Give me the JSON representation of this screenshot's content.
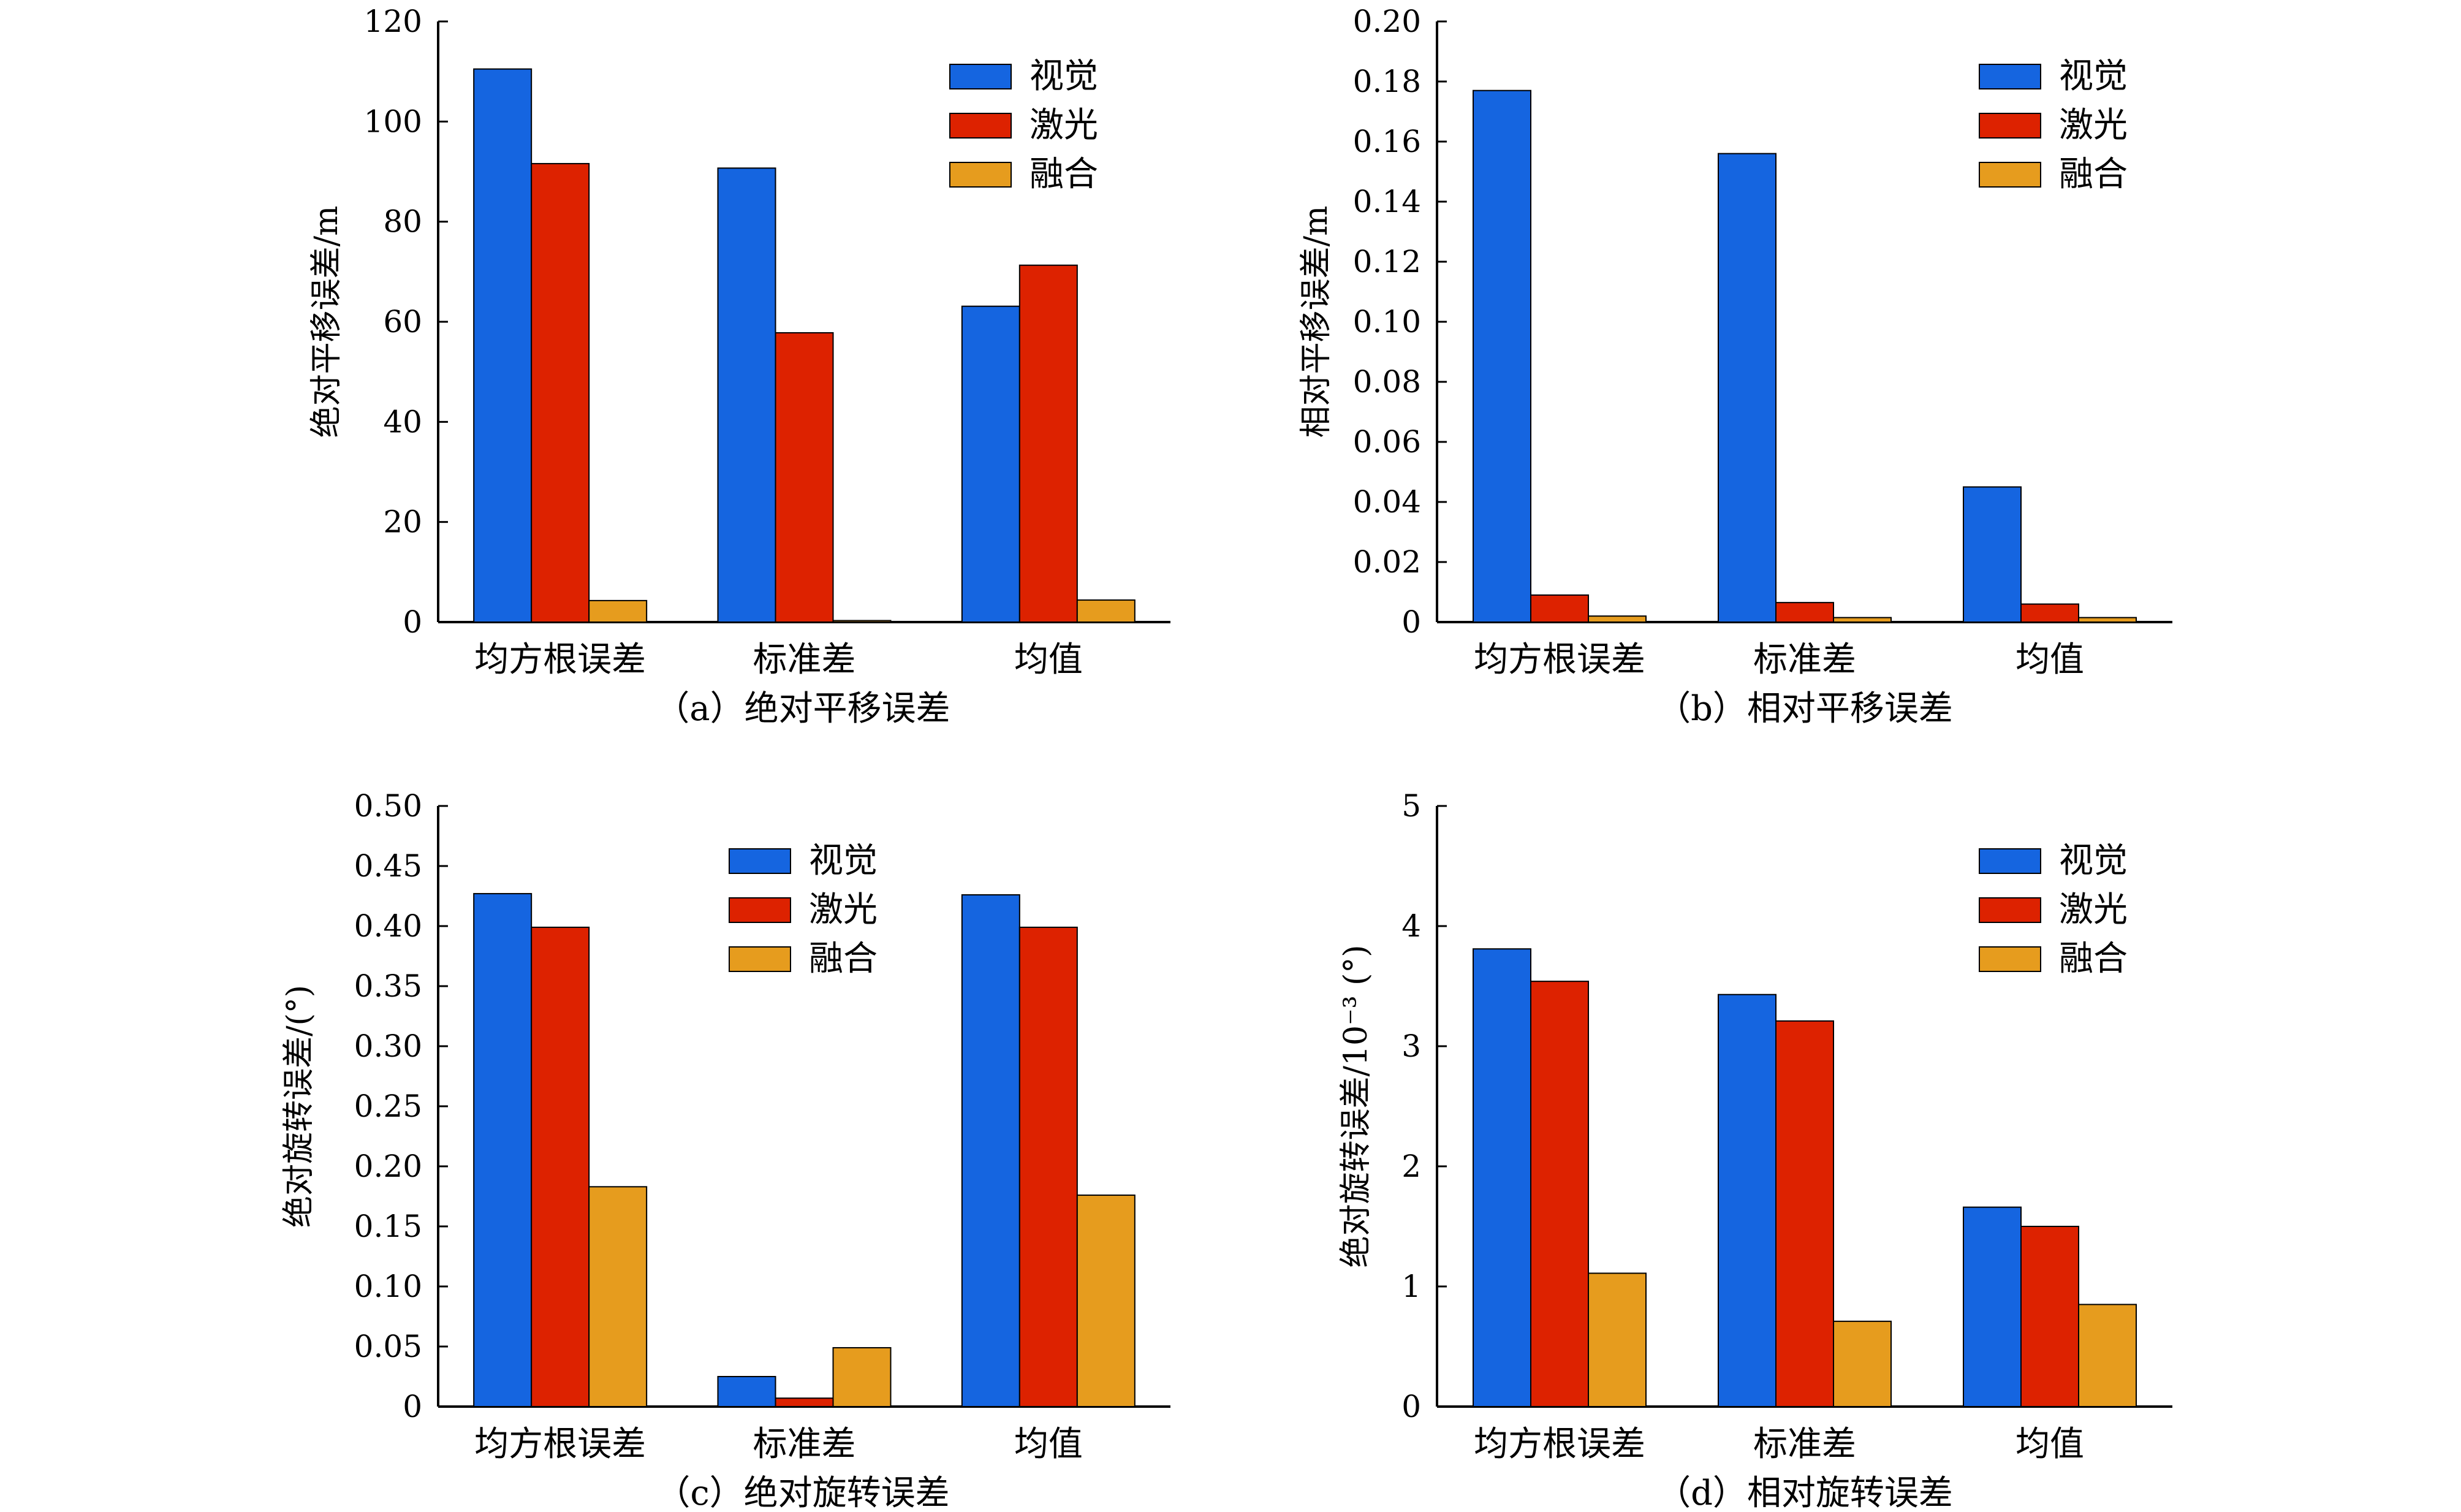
{
  "chart_data": [
    {
      "type": "bar",
      "caption": "（a）绝对平移误差",
      "ylabel": "绝对平移误差/m",
      "categories": [
        "均方根误差",
        "标准差",
        "均值"
      ],
      "ylim": [
        0,
        120
      ],
      "yticks": [
        0,
        20,
        40,
        60,
        80,
        100,
        120
      ],
      "ytick_labels": [
        "0",
        "20",
        "40",
        "60",
        "80",
        "100",
        "120"
      ],
      "legend_position": "top-right",
      "series": [
        {
          "name": "视觉",
          "color": "#1565e0",
          "values": [
            110.5,
            90.7,
            63.1
          ]
        },
        {
          "name": "激光",
          "color": "#dd2200",
          "values": [
            91.6,
            57.8,
            71.3
          ]
        },
        {
          "name": "融合",
          "color": "#e69c1e",
          "values": [
            4.3,
            0.3,
            4.4
          ]
        }
      ]
    },
    {
      "type": "bar",
      "caption": "（b）相对平移误差",
      "ylabel": "相对平移误差/m",
      "categories": [
        "均方根误差",
        "标准差",
        "均值"
      ],
      "ylim": [
        0,
        0.2
      ],
      "yticks": [
        0,
        0.02,
        0.04,
        0.06,
        0.08,
        0.1,
        0.12,
        0.14,
        0.16,
        0.18,
        0.2
      ],
      "ytick_labels": [
        "0",
        "0.02",
        "0.04",
        "0.06",
        "0.08",
        "0.10",
        "0.12",
        "0.14",
        "0.16",
        "0.18",
        "0.20"
      ],
      "legend_position": "top-right",
      "series": [
        {
          "name": "视觉",
          "color": "#1565e0",
          "values": [
            0.177,
            0.156,
            0.045
          ]
        },
        {
          "name": "激光",
          "color": "#dd2200",
          "values": [
            0.009,
            0.0065,
            0.006
          ]
        },
        {
          "name": "融合",
          "color": "#e69c1e",
          "values": [
            0.002,
            0.0015,
            0.0015
          ]
        }
      ]
    },
    {
      "type": "bar",
      "caption": "（c）绝对旋转误差",
      "ylabel": "绝对旋转误差/(°)",
      "categories": [
        "均方根误差",
        "标准差",
        "均值"
      ],
      "ylim": [
        0,
        0.5
      ],
      "yticks": [
        0,
        0.05,
        0.1,
        0.15,
        0.2,
        0.25,
        0.3,
        0.35,
        0.4,
        0.45,
        0.5
      ],
      "ytick_labels": [
        "0",
        "0.05",
        "0.10",
        "0.15",
        "0.20",
        "0.25",
        "0.30",
        "0.35",
        "0.40",
        "0.45",
        "0.50"
      ],
      "legend_position": "top-center",
      "series": [
        {
          "name": "视觉",
          "color": "#1565e0",
          "values": [
            0.427,
            0.025,
            0.426
          ]
        },
        {
          "name": "激光",
          "color": "#dd2200",
          "values": [
            0.399,
            0.007,
            0.399
          ]
        },
        {
          "name": "融合",
          "color": "#e69c1e",
          "values": [
            0.183,
            0.049,
            0.176
          ]
        }
      ]
    },
    {
      "type": "bar",
      "caption": "（d）相对旋转误差",
      "ylabel": "绝对旋转误差/10⁻³ (°)",
      "categories": [
        "均方根误差",
        "标准差",
        "均值"
      ],
      "ylim": [
        0,
        5
      ],
      "yticks": [
        0,
        1,
        2,
        3,
        4,
        5
      ],
      "ytick_labels": [
        "0",
        "1",
        "2",
        "3",
        "4",
        "5"
      ],
      "legend_position": "top-right",
      "series": [
        {
          "name": "视觉",
          "color": "#1565e0",
          "values": [
            3.81,
            3.43,
            1.66
          ]
        },
        {
          "name": "激光",
          "color": "#dd2200",
          "values": [
            3.54,
            3.21,
            1.5
          ]
        },
        {
          "name": "融合",
          "color": "#e69c1e",
          "values": [
            1.11,
            0.71,
            0.85
          ]
        }
      ]
    }
  ]
}
